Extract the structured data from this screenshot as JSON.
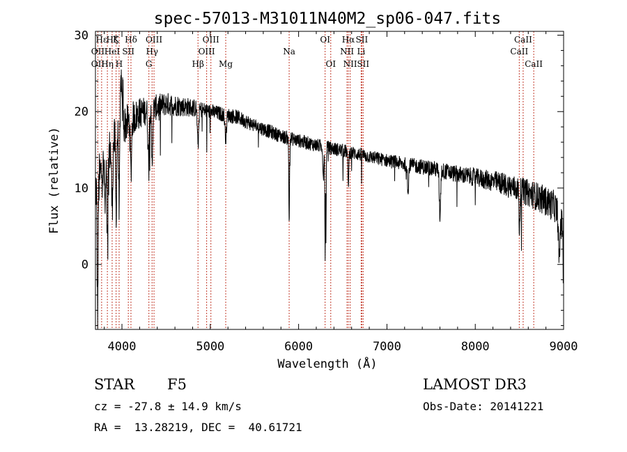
{
  "chart_data": {
    "type": "line",
    "title": "spec-57013-M31011N40M2_sp06-047.fits",
    "xlabel": "Wavelength (Å)",
    "ylabel": "Flux (relative)",
    "xlim": [
      3700,
      9000
    ],
    "ylim": [
      -8.5,
      30.5
    ],
    "xticks": [
      4000,
      5000,
      6000,
      7000,
      8000,
      9000
    ],
    "yticks": [
      0,
      10,
      20,
      30
    ],
    "xtick_labels": [
      "4000",
      "5000",
      "6000",
      "7000",
      "8000",
      "9000"
    ],
    "ytick_labels": [
      "0",
      "10",
      "20",
      "30"
    ],
    "continuum": [
      {
        "x": 3700,
        "y": 10
      },
      {
        "x": 3800,
        "y": 13
      },
      {
        "x": 3900,
        "y": 16
      },
      {
        "x": 4000,
        "y": 18
      },
      {
        "x": 4200,
        "y": 19.8
      },
      {
        "x": 4500,
        "y": 21
      },
      {
        "x": 4800,
        "y": 20.5
      },
      {
        "x": 5000,
        "y": 20
      },
      {
        "x": 5300,
        "y": 19.3
      },
      {
        "x": 5500,
        "y": 18.2
      },
      {
        "x": 5800,
        "y": 16.8
      },
      {
        "x": 6000,
        "y": 16.2
      },
      {
        "x": 6200,
        "y": 15.6
      },
      {
        "x": 6500,
        "y": 14.9
      },
      {
        "x": 6800,
        "y": 14.1
      },
      {
        "x": 7000,
        "y": 13.6
      },
      {
        "x": 7200,
        "y": 13.1
      },
      {
        "x": 7500,
        "y": 12.6
      },
      {
        "x": 7800,
        "y": 11.8
      },
      {
        "x": 8000,
        "y": 11.4
      },
      {
        "x": 8300,
        "y": 10.6
      },
      {
        "x": 8500,
        "y": 9.8
      },
      {
        "x": 8700,
        "y": 8.9
      },
      {
        "x": 8900,
        "y": 7.6
      },
      {
        "x": 9000,
        "y": 4.5
      }
    ],
    "absorption_features": [
      {
        "x": 3725,
        "depth": 17,
        "width": 8
      },
      {
        "x": 3810,
        "depth": 6,
        "width": 10
      },
      {
        "x": 3835,
        "depth": 12,
        "width": 8
      },
      {
        "x": 3889,
        "depth": 8,
        "width": 10
      },
      {
        "x": 3934,
        "depth": 10,
        "width": 8
      },
      {
        "x": 3968,
        "depth": 9,
        "width": 8
      },
      {
        "x": 4102,
        "depth": 7,
        "width": 10
      },
      {
        "x": 4300,
        "depth": 6,
        "width": 10
      },
      {
        "x": 4341,
        "depth": 7,
        "width": 10
      },
      {
        "x": 4861,
        "depth": 5,
        "width": 10
      },
      {
        "x": 5175,
        "depth": 3,
        "width": 12
      },
      {
        "x": 5893,
        "depth": 11,
        "width": 6
      },
      {
        "x": 6280,
        "depth": 4,
        "width": 8
      },
      {
        "x": 6300,
        "depth": 15,
        "width": 4
      },
      {
        "x": 6310,
        "depth": 13,
        "width": 4
      },
      {
        "x": 6563,
        "depth": 4,
        "width": 8
      },
      {
        "x": 7240,
        "depth": 4,
        "width": 8
      },
      {
        "x": 7600,
        "depth": 6,
        "width": 10
      },
      {
        "x": 8500,
        "depth": 5,
        "width": 8
      },
      {
        "x": 8950,
        "depth": 6,
        "width": 10
      }
    ],
    "emission_features": [
      {
        "x": 3990,
        "height": 7,
        "width": 8
      },
      {
        "x": 4010,
        "height": 5,
        "width": 6
      }
    ],
    "noise_amplitude": [
      {
        "x": 3700,
        "a": 3.5
      },
      {
        "x": 4300,
        "a": 1.8
      },
      {
        "x": 5000,
        "a": 1.0
      },
      {
        "x": 6000,
        "a": 0.9
      },
      {
        "x": 7000,
        "a": 0.9
      },
      {
        "x": 8000,
        "a": 1.2
      },
      {
        "x": 9000,
        "a": 2.2
      }
    ],
    "spectral_lines": [
      {
        "label": "Hε",
        "x": 3770,
        "row": 1
      },
      {
        "label": "OII",
        "x": 3727,
        "row": 2
      },
      {
        "label": "OII",
        "x": 3727,
        "row": 3
      },
      {
        "label": "Hη",
        "x": 3835,
        "row": 3
      },
      {
        "label": "Hζ",
        "x": 3889,
        "row": 1
      },
      {
        "label": "HeI",
        "x": 3889,
        "row": 2
      },
      {
        "label": "K",
        "x": 3934,
        "row": 1
      },
      {
        "label": "H",
        "x": 3968,
        "row": 3
      },
      {
        "label": "SII",
        "x": 4072,
        "row": 2
      },
      {
        "label": "Hδ",
        "x": 4102,
        "row": 1
      },
      {
        "label": "OIII",
        "x": 4363,
        "row": 1
      },
      {
        "label": "Hγ",
        "x": 4341,
        "row": 2
      },
      {
        "label": "G",
        "x": 4305,
        "row": 3
      },
      {
        "label": "Hβ",
        "x": 4861,
        "row": 3
      },
      {
        "label": "OIII",
        "x": 5007,
        "row": 1
      },
      {
        "label": "OIII",
        "x": 4959,
        "row": 2
      },
      {
        "label": "Mg",
        "x": 5175,
        "row": 3
      },
      {
        "label": "Na",
        "x": 5893,
        "row": 2
      },
      {
        "label": "OI",
        "x": 6300,
        "row": 1
      },
      {
        "label": "OI",
        "x": 6364,
        "row": 3
      },
      {
        "label": "Hα",
        "x": 6563,
        "row": 1
      },
      {
        "label": "NII",
        "x": 6548,
        "row": 2
      },
      {
        "label": "NII",
        "x": 6584,
        "row": 3
      },
      {
        "label": "SII",
        "x": 6716,
        "row": 1
      },
      {
        "label": "Li",
        "x": 6708,
        "row": 2
      },
      {
        "label": "SII",
        "x": 6731,
        "row": 3
      },
      {
        "label": "CaII",
        "x": 8542,
        "row": 1
      },
      {
        "label": "CaII",
        "x": 8498,
        "row": 2
      },
      {
        "label": "CaII",
        "x": 8662,
        "row": 3
      }
    ]
  },
  "info": {
    "class_label": "STAR",
    "subclass_label": "F5",
    "survey": "LAMOST DR3",
    "cz": "cz = -27.8 ± 14.9 km/s",
    "obs_date": "Obs-Date: 20141221",
    "coords": "RA =  13.28219, DEC =  40.61721"
  }
}
